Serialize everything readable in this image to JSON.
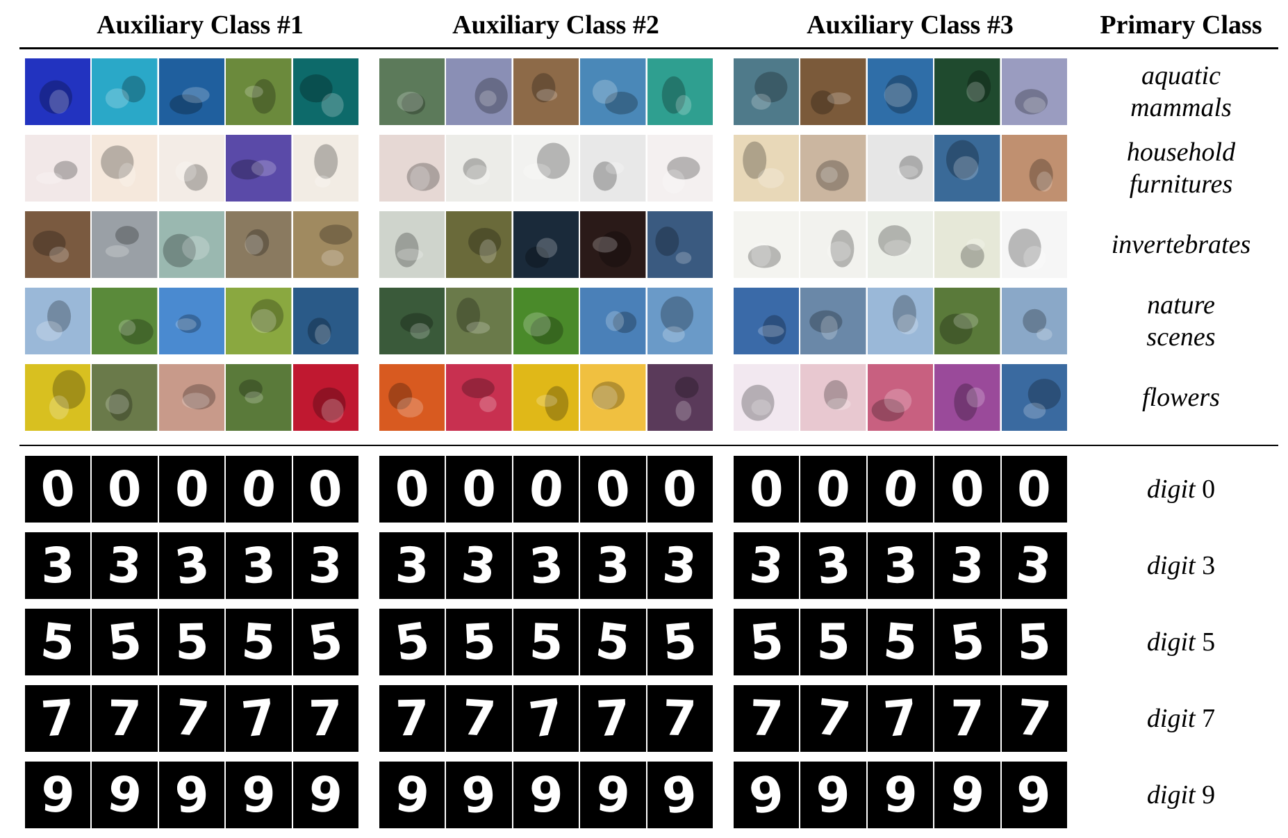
{
  "headers": [
    "Auxiliary Class #1",
    "Auxiliary Class #2",
    "Auxiliary Class #3",
    "Primary Class"
  ],
  "image_rows": [
    {
      "label_lines": [
        "aquatic",
        "mammals"
      ],
      "groups": [
        [
          "#2233c0",
          "#2aa8c8",
          "#1f5f9e",
          "#6b8a3c",
          "#0d6a6a"
        ],
        [
          "#5c7a5a",
          "#8a8fb5",
          "#8d6a48",
          "#4a88b8",
          "#2f9f90"
        ],
        [
          "#4f7a8a",
          "#7b5a3a",
          "#2f6ea8",
          "#1f4a2e",
          "#9a9cc0"
        ]
      ]
    },
    {
      "label_lines": [
        "household",
        "furnitures"
      ],
      "groups": [
        [
          "#f2e8e8",
          "#f5e8dc",
          "#f3ece6",
          "#5a4aa8",
          "#f2ece4"
        ],
        [
          "#e6d8d4",
          "#ecece8",
          "#f2f2f0",
          "#e8e8e8",
          "#f4f0f0"
        ],
        [
          "#e8d8b8",
          "#cbb6a0",
          "#e6e6e6",
          "#3a6a98",
          "#c09070"
        ]
      ]
    },
    {
      "label_lines": [
        "invertebrates"
      ],
      "groups": [
        [
          "#7a5a40",
          "#9aa0a6",
          "#9ab8b0",
          "#8a7a60",
          "#a08a60"
        ],
        [
          "#cfd4cc",
          "#6a6a3a",
          "#1a2a3a",
          "#2a1a18",
          "#3a5a80"
        ],
        [
          "#f4f4f0",
          "#f2f2ee",
          "#ecefe8",
          "#e6e8d8",
          "#f6f6f6"
        ]
      ]
    },
    {
      "label_lines": [
        "nature",
        "scenes"
      ],
      "groups": [
        [
          "#9ab8d8",
          "#5a8a3a",
          "#4a8ad0",
          "#8aa840",
          "#2a5a88"
        ],
        [
          "#3a5a3a",
          "#6a7a4a",
          "#4a8a2a",
          "#4a80b8",
          "#6a9ac8"
        ],
        [
          "#3a6aa8",
          "#6a88a8",
          "#9ab8d8",
          "#5a7a3a",
          "#8aa8c8"
        ]
      ]
    },
    {
      "label_lines": [
        "flowers"
      ],
      "groups": [
        [
          "#d8c020",
          "#6a7a4a",
          "#c89a8a",
          "#5a7a3a",
          "#c01830"
        ],
        [
          "#d85a20",
          "#c83050",
          "#e0b818",
          "#f0c040",
          "#5a3a5a"
        ],
        [
          "#f2e8f0",
          "#e8c8d0",
          "#c86080",
          "#9a4a9a",
          "#3a6aa0"
        ]
      ]
    }
  ],
  "digit_rows": [
    {
      "label": "digit",
      "value": "0",
      "digit": "0"
    },
    {
      "label": "digit",
      "value": "3",
      "digit": "3"
    },
    {
      "label": "digit",
      "value": "5",
      "digit": "5"
    },
    {
      "label": "digit",
      "value": "7",
      "digit": "7"
    },
    {
      "label": "digit",
      "value": "9",
      "digit": "9"
    }
  ]
}
